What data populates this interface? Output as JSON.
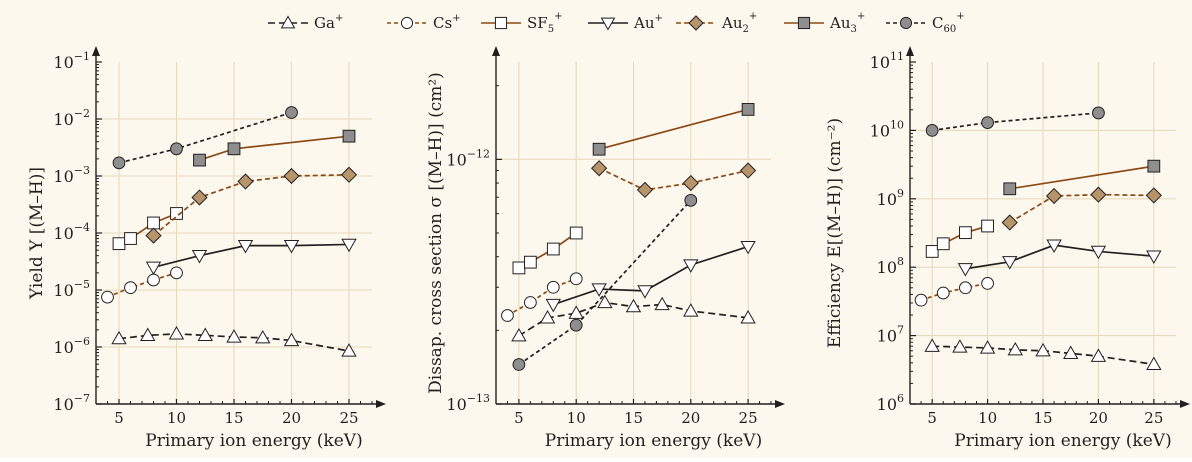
{
  "legend": [
    {
      "label": "Ga",
      "sup": "+",
      "sub": "",
      "style": "ga"
    },
    {
      "label": "Cs",
      "sup": "+",
      "sub": "",
      "style": "cs"
    },
    {
      "label": "SF",
      "sup": "+",
      "sub": "5",
      "style": "sf5"
    },
    {
      "label": "Au",
      "sup": "+",
      "sub": "",
      "style": "au"
    },
    {
      "label": "Au",
      "sup": "+",
      "sub": "2",
      "style": "au2"
    },
    {
      "label": "Au",
      "sup": "+",
      "sub": "3",
      "style": "au3"
    },
    {
      "label": "C",
      "sup": "+",
      "sub": "60",
      "style": "c60"
    }
  ],
  "styles": {
    "ga": {
      "line": "#231f20",
      "dash": "7,4",
      "marker": "triangle-up",
      "fill": "#ffffff"
    },
    "cs": {
      "line": "#8b4a14",
      "dash": "4,3",
      "marker": "circle",
      "fill": "#ffffff"
    },
    "sf5": {
      "line": "#8b4a14",
      "dash": "",
      "marker": "square",
      "fill": "#ffffff"
    },
    "au": {
      "line": "#231f20",
      "dash": "",
      "marker": "triangle-down",
      "fill": "#ffffff"
    },
    "au2": {
      "line": "#8b4a14",
      "dash": "5,3",
      "marker": "diamond",
      "fill": "#b8946a"
    },
    "au3": {
      "line": "#8b4a14",
      "dash": "",
      "marker": "square",
      "fill": "#8e8e8e"
    },
    "c60": {
      "line": "#231f20",
      "dash": "4,3",
      "marker": "circle",
      "fill": "#8e8e8e"
    }
  },
  "colors": {
    "background": "#fdf8ee",
    "grid": "#e9d9bb",
    "axis": "#231f20"
  },
  "chart_data": [
    {
      "type": "line",
      "yscale": "log",
      "ylabel": "Yield Y [(M–H)]",
      "xlabel": "Primary ion energy (keV)",
      "xlim": [
        3,
        27
      ],
      "ylim": [
        1e-07,
        0.1
      ],
      "xticks": [
        5,
        10,
        15,
        20,
        25
      ],
      "yticks": [
        {
          "v": 1e-07,
          "base": "10",
          "exp": "−7"
        },
        {
          "v": 1e-06,
          "base": "10",
          "exp": "−6"
        },
        {
          "v": 1e-05,
          "base": "10",
          "exp": "−5"
        },
        {
          "v": 0.0001,
          "base": "10",
          "exp": "−4"
        },
        {
          "v": 0.001,
          "base": "10",
          "exp": "−3"
        },
        {
          "v": 0.01,
          "base": "10",
          "exp": "−2"
        },
        {
          "v": 0.1,
          "base": "10",
          "exp": "−1"
        }
      ],
      "grid": true,
      "series": [
        {
          "name": "Ga+",
          "style": "ga",
          "x": [
            5,
            7.5,
            10,
            12.5,
            15,
            17.5,
            20,
            25
          ],
          "y": [
            1.4e-06,
            1.6e-06,
            1.7e-06,
            1.6e-06,
            1.5e-06,
            1.45e-06,
            1.3e-06,
            8.5e-07
          ]
        },
        {
          "name": "Cs+",
          "style": "cs",
          "x": [
            4,
            6,
            8,
            10
          ],
          "y": [
            7.5e-06,
            1.1e-05,
            1.5e-05,
            2e-05
          ]
        },
        {
          "name": "SF5+",
          "style": "sf5",
          "x": [
            5,
            6,
            8,
            10
          ],
          "y": [
            6.5e-05,
            8e-05,
            0.00015,
            0.00022
          ]
        },
        {
          "name": "Au+",
          "style": "au",
          "x": [
            8,
            12,
            16,
            20,
            25
          ],
          "y": [
            2.5e-05,
            4e-05,
            6e-05,
            6e-05,
            6.3e-05
          ]
        },
        {
          "name": "Au2+",
          "style": "au2",
          "x": [
            8,
            12,
            16,
            20,
            25
          ],
          "y": [
            9e-05,
            0.00042,
            0.0008,
            0.001,
            0.00105
          ]
        },
        {
          "name": "Au3+",
          "style": "au3",
          "x": [
            12,
            15,
            25
          ],
          "y": [
            0.0019,
            0.003,
            0.005
          ]
        },
        {
          "name": "C60+",
          "style": "c60",
          "x": [
            5,
            10,
            20
          ],
          "y": [
            0.0017,
            0.003,
            0.013
          ]
        }
      ]
    },
    {
      "type": "line",
      "yscale": "log",
      "ylabel": "Dissap. cross section σ [(M–H)] (cm²)",
      "xlabel": "Primary ion energy (keV)",
      "xlim": [
        3,
        27
      ],
      "ylim": [
        1e-13,
        2.5e-12
      ],
      "xticks": [
        5,
        10,
        15,
        20,
        25
      ],
      "yticks": [
        {
          "v": 1e-13,
          "base": "10",
          "exp": "−13"
        },
        {
          "v": 1e-12,
          "base": "10",
          "exp": "−12"
        }
      ],
      "grid": true,
      "series": [
        {
          "name": "Ga+",
          "style": "ga",
          "x": [
            5,
            7.5,
            10,
            12.5,
            15,
            17.5,
            20,
            25
          ],
          "y": [
            1.9e-13,
            2.25e-13,
            2.35e-13,
            2.6e-13,
            2.5e-13,
            2.55e-13,
            2.4e-13,
            2.25e-13
          ]
        },
        {
          "name": "Cs+",
          "style": "cs",
          "x": [
            4,
            6,
            8,
            10
          ],
          "y": [
            2.3e-13,
            2.6e-13,
            3e-13,
            3.25e-13
          ]
        },
        {
          "name": "SF5+",
          "style": "sf5",
          "x": [
            5,
            6,
            8,
            10
          ],
          "y": [
            3.6e-13,
            3.8e-13,
            4.3e-13,
            5e-13
          ]
        },
        {
          "name": "Au+",
          "style": "au",
          "x": [
            8,
            12,
            16,
            20,
            25
          ],
          "y": [
            2.55e-13,
            2.95e-13,
            2.9e-13,
            3.7e-13,
            4.4e-13
          ]
        },
        {
          "name": "Au2+",
          "style": "au2",
          "x": [
            12,
            16,
            20,
            25
          ],
          "y": [
            9.2e-13,
            7.5e-13,
            8e-13,
            9e-13
          ]
        },
        {
          "name": "Au3+",
          "style": "au3",
          "x": [
            12,
            25
          ],
          "y": [
            1.1e-12,
            1.6e-12
          ]
        },
        {
          "name": "C60+",
          "style": "c60",
          "x": [
            5,
            10,
            20
          ],
          "y": [
            1.45e-13,
            2.1e-13,
            6.8e-13
          ]
        }
      ]
    },
    {
      "type": "line",
      "yscale": "log",
      "ylabel": "Efficiency E[(M–H)] (cm⁻²)",
      "xlabel": "Primary ion energy (keV)",
      "xlim": [
        3,
        27
      ],
      "ylim": [
        1000000.0,
        100000000000.0
      ],
      "xticks": [
        5,
        10,
        15,
        20,
        25
      ],
      "yticks": [
        {
          "v": 1000000.0,
          "base": "10",
          "exp": "6"
        },
        {
          "v": 10000000.0,
          "base": "10",
          "exp": "7"
        },
        {
          "v": 100000000.0,
          "base": "10",
          "exp": "8"
        },
        {
          "v": 1000000000.0,
          "base": "10",
          "exp": "9"
        },
        {
          "v": 10000000000.0,
          "base": "10",
          "exp": "10"
        },
        {
          "v": 100000000000.0,
          "base": "10",
          "exp": "11"
        }
      ],
      "grid": true,
      "series": [
        {
          "name": "Ga+",
          "style": "ga",
          "x": [
            5,
            7.5,
            10,
            12.5,
            15,
            17.5,
            20,
            25
          ],
          "y": [
            7000000.0,
            6800000.0,
            6600000.0,
            6200000.0,
            6000000.0,
            5500000.0,
            5000000.0,
            3800000.0
          ]
        },
        {
          "name": "Cs+",
          "style": "cs",
          "x": [
            4,
            6,
            8,
            10
          ],
          "y": [
            33000000.0,
            42000000.0,
            50000000.0,
            58000000.0
          ]
        },
        {
          "name": "SF5+",
          "style": "sf5",
          "x": [
            5,
            6,
            8,
            10
          ],
          "y": [
            170000000.0,
            220000000.0,
            320000000.0,
            400000000.0
          ]
        },
        {
          "name": "Au+",
          "style": "au",
          "x": [
            8,
            12,
            16,
            20,
            25
          ],
          "y": [
            95000000.0,
            120000000.0,
            210000000.0,
            170000000.0,
            145000000.0
          ]
        },
        {
          "name": "Au2+",
          "style": "au2",
          "x": [
            12,
            16,
            20,
            25
          ],
          "y": [
            450000000.0,
            1100000000.0,
            1150000000.0,
            1120000000.0
          ]
        },
        {
          "name": "Au3+",
          "style": "au3",
          "x": [
            12,
            25
          ],
          "y": [
            1400000000.0,
            3000000000.0
          ]
        },
        {
          "name": "C60+",
          "style": "c60",
          "x": [
            5,
            10,
            20
          ],
          "y": [
            10000000000.0,
            13000000000.0,
            18000000000.0
          ]
        }
      ]
    }
  ]
}
